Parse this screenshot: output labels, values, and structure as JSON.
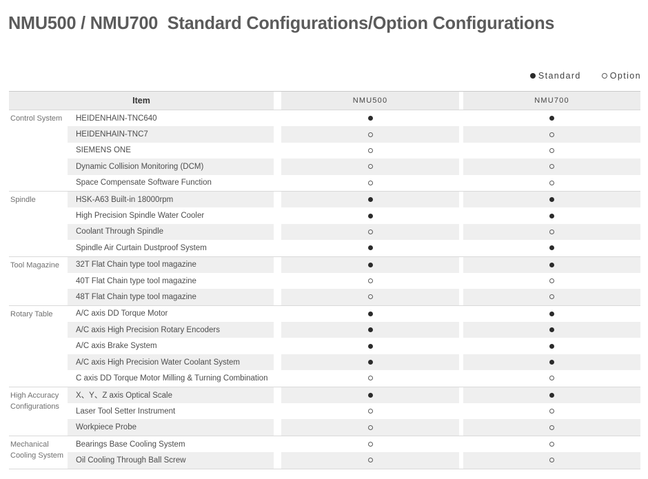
{
  "title": "NMU500 / NMU700  Standard Configurations/Option Configurations",
  "legend": {
    "items": [
      {
        "marker": "filled-dot",
        "label": "Standard"
      },
      {
        "marker": "open-dot",
        "label": "Option"
      }
    ]
  },
  "colors": {
    "title_text": "#5b5b5b",
    "stripe": "#efefef",
    "header_bg": "#ececec",
    "standard_dot": "#2b2b2b",
    "section_border": "#d9d9d9"
  },
  "table": {
    "headers": {
      "item": "Item",
      "nmu500": "NMU500",
      "nmu700": "NMU700"
    },
    "sections": [
      {
        "category": "Control System",
        "rows": [
          {
            "item": "HEIDENHAIN-TNC640",
            "nmu500": "standard",
            "nmu700": "standard"
          },
          {
            "item": "HEIDENHAIN-TNC7",
            "nmu500": "option",
            "nmu700": "option"
          },
          {
            "item": "SIEMENS ONE",
            "nmu500": "option",
            "nmu700": "option"
          },
          {
            "item": "Dynamic Collision Monitoring (DCM)",
            "nmu500": "option",
            "nmu700": "option"
          },
          {
            "item": "Space Compensate Software Function",
            "nmu500": "option",
            "nmu700": "option"
          }
        ]
      },
      {
        "category": "Spindle",
        "rows": [
          {
            "item": "HSK-A63 Built-in 18000rpm",
            "nmu500": "standard",
            "nmu700": "standard"
          },
          {
            "item": "High Precision Spindle Water Cooler",
            "nmu500": "standard",
            "nmu700": "standard"
          },
          {
            "item": "Coolant Through Spindle",
            "nmu500": "option",
            "nmu700": "option"
          },
          {
            "item": "Spindle Air Curtain Dustproof System",
            "nmu500": "standard",
            "nmu700": "standard"
          }
        ]
      },
      {
        "category": "Tool Magazine",
        "rows": [
          {
            "item": "32T Flat Chain type tool magazine",
            "nmu500": "standard",
            "nmu700": "standard"
          },
          {
            "item": "40T Flat Chain type tool magazine",
            "nmu500": "option",
            "nmu700": "option"
          },
          {
            "item": "48T Flat Chain type tool magazine",
            "nmu500": "option",
            "nmu700": "option"
          }
        ]
      },
      {
        "category": "Rotary Table",
        "rows": [
          {
            "item": "A/C axis DD Torque Motor",
            "nmu500": "standard",
            "nmu700": "standard"
          },
          {
            "item": "A/C axis High Precision Rotary Encoders",
            "nmu500": "standard",
            "nmu700": "standard"
          },
          {
            "item": "A/C axis Brake System",
            "nmu500": "standard",
            "nmu700": "standard"
          },
          {
            "item": "A/C axis High Precision Water Coolant System",
            "nmu500": "standard",
            "nmu700": "standard"
          },
          {
            "item": "C axis DD Torque Motor Milling & Turning Combination",
            "nmu500": "option",
            "nmu700": "option"
          }
        ]
      },
      {
        "category": "High Accuracy Configurations",
        "rows": [
          {
            "item": "X、Y、Z axis Optical Scale",
            "nmu500": "standard",
            "nmu700": "standard"
          },
          {
            "item": "Laser Tool Setter Instrument",
            "nmu500": "option",
            "nmu700": "option"
          },
          {
            "item": "Workpiece Probe",
            "nmu500": "option",
            "nmu700": "option"
          }
        ]
      },
      {
        "category": "Mechanical Cooling System",
        "rows": [
          {
            "item": "Bearings Base Cooling System",
            "nmu500": "option",
            "nmu700": "option"
          },
          {
            "item": "Oil Cooling Through Ball Screw",
            "nmu500": "option",
            "nmu700": "option"
          }
        ]
      }
    ]
  }
}
